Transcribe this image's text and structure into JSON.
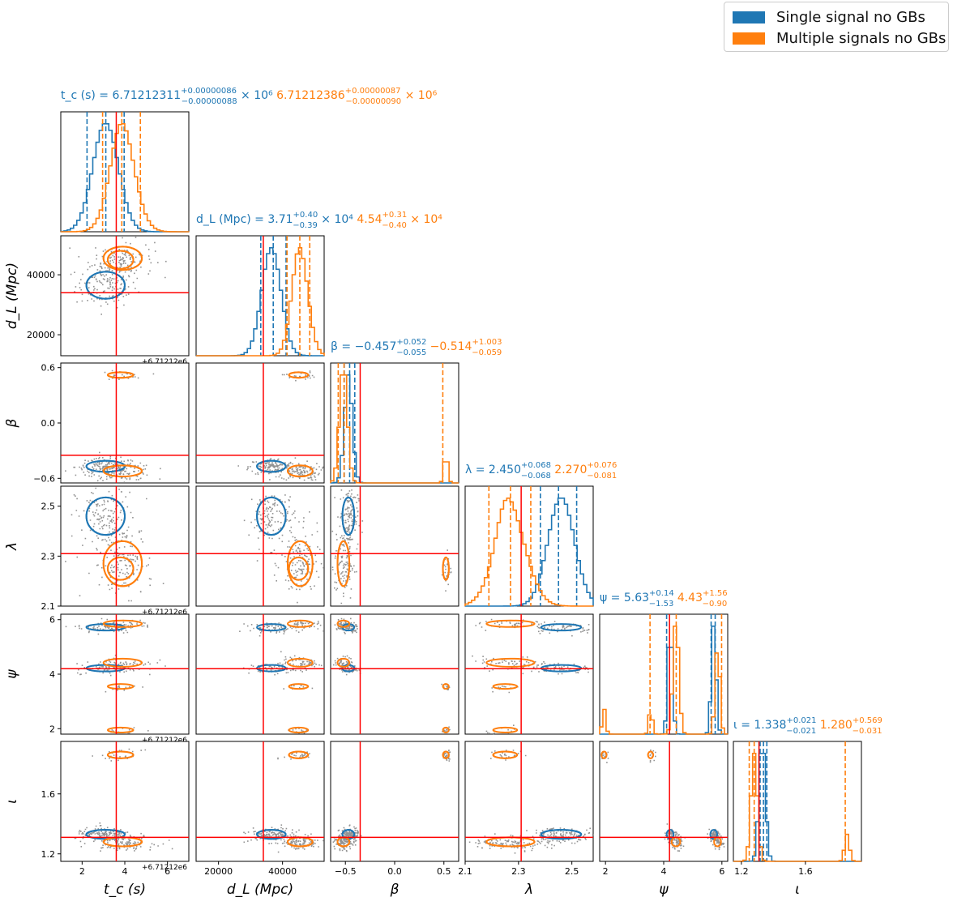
{
  "legend": {
    "entries": [
      {
        "label": "Single signal no GBs",
        "color": "#1f77b4"
      },
      {
        "label": "Multiple signals no GBs",
        "color": "#ff7f0e"
      }
    ]
  },
  "chart_data": {
    "type": "scatter",
    "subtype": "corner plot",
    "colors": {
      "single": "#1f77b4",
      "multiple": "#ff7f0e",
      "truth": "#ff0000",
      "samples": "#808080"
    },
    "parameters": [
      {
        "name": "tc",
        "xlabel": "t_c (s)",
        "offset_label": "+6.71212e6",
        "range": [
          1,
          7
        ],
        "ticks": [
          2,
          4,
          6
        ],
        "tick_labels": [
          "2",
          "4",
          "6"
        ],
        "truth": 3.6,
        "title_prefix": "t_c (s) = ",
        "title_single": "6.71212311",
        "sup_single": "+0.00000086",
        "sub_single": "−0.00000088",
        "suffix_single": " × 10⁶",
        "title_multiple": "6.71212386",
        "sup_multiple": "+0.00000087",
        "sub_multiple": "−0.00000090",
        "suffix_multiple": " × 10⁶",
        "single_quantiles": [
          2.23,
          3.11,
          3.97
        ],
        "multiple_quantiles": [
          2.96,
          3.86,
          4.73
        ]
      },
      {
        "name": "dL",
        "xlabel": "d_L (Mpc)",
        "ylabel": "d_L (Mpc)",
        "range": [
          13000,
          53000
        ],
        "ticks": [
          20000,
          40000
        ],
        "tick_labels": [
          "20000",
          "40000"
        ],
        "truth": 34000,
        "title_prefix": "d_L (Mpc) = ",
        "title_single": "3.71",
        "sup_single": "+0.40",
        "sub_single": "−0.39",
        "suffix_single": " × 10⁴",
        "title_multiple": "4.54",
        "sup_multiple": "+0.31",
        "sub_multiple": "−0.40",
        "suffix_multiple": " × 10⁴",
        "single_quantiles": [
          33200,
          37100,
          41100
        ],
        "multiple_quantiles": [
          41400,
          45400,
          48500
        ]
      },
      {
        "name": "beta",
        "xlabel": "β",
        "ylabel": "β",
        "range": [
          -0.65,
          0.65
        ],
        "ticks": [
          -0.6,
          0.0,
          0.6
        ],
        "tick_labels": [
          "−0.6",
          "0.0",
          "0.6"
        ],
        "xticks": [
          -0.5,
          0.0,
          0.5
        ],
        "xtick_labels": [
          "−0.5",
          "0.0",
          "0.5"
        ],
        "truth": -0.35,
        "title_prefix": "β = ",
        "title_single": "−0.457",
        "sup_single": "+0.052",
        "sub_single": "−0.055",
        "suffix_single": "",
        "title_multiple": "−0.514",
        "sup_multiple": "+1.003",
        "sub_multiple": "−0.059",
        "suffix_multiple": "",
        "single_quantiles": [
          -0.512,
          -0.457,
          -0.405
        ],
        "multiple_quantiles": [
          -0.573,
          -0.514,
          0.489
        ]
      },
      {
        "name": "lambda",
        "xlabel": "λ",
        "ylabel": "λ",
        "range": [
          2.1,
          2.58
        ],
        "ticks": [
          2.1,
          2.3,
          2.5
        ],
        "tick_labels": [
          "2.1",
          "2.3",
          "2.5"
        ],
        "truth": 2.31,
        "title_prefix": "λ = ",
        "title_single": "2.450",
        "sup_single": "+0.068",
        "sub_single": "−0.068",
        "suffix_single": "",
        "title_multiple": "2.270",
        "sup_multiple": "+0.076",
        "sub_multiple": "−0.081",
        "suffix_multiple": "",
        "single_quantiles": [
          2.382,
          2.45,
          2.518
        ],
        "multiple_quantiles": [
          2.189,
          2.27,
          2.346
        ]
      },
      {
        "name": "psi",
        "xlabel": "ψ",
        "ylabel": "ψ",
        "range": [
          1.8,
          6.2
        ],
        "ticks": [
          2,
          4,
          6
        ],
        "tick_labels": [
          "2",
          "4",
          "6"
        ],
        "truth": 4.2,
        "title_prefix": "ψ = ",
        "title_single": "5.63",
        "sup_single": "+0.14",
        "sub_single": "−1.53",
        "suffix_single": "",
        "title_multiple": "4.43",
        "sup_multiple": "+1.56",
        "sub_multiple": "−0.90",
        "suffix_multiple": "",
        "single_quantiles": [
          4.1,
          5.63,
          5.77
        ],
        "multiple_quantiles": [
          3.53,
          4.43,
          5.99
        ]
      },
      {
        "name": "iota",
        "xlabel": "ι",
        "ylabel": "ι",
        "range": [
          1.15,
          1.95
        ],
        "ticks": [
          1.2,
          1.6
        ],
        "tick_labels": [
          "1.2",
          "1.6"
        ],
        "truth": 1.31,
        "title_prefix": "ι = ",
        "title_single": "1.338",
        "sup_single": "+0.021",
        "sub_single": "−0.021",
        "suffix_single": "",
        "title_multiple": "1.280",
        "sup_multiple": "+0.569",
        "sub_multiple": "−0.031",
        "suffix_multiple": "",
        "single_quantiles": [
          1.317,
          1.338,
          1.359
        ],
        "multiple_quantiles": [
          1.249,
          1.28,
          1.849
        ]
      }
    ]
  }
}
